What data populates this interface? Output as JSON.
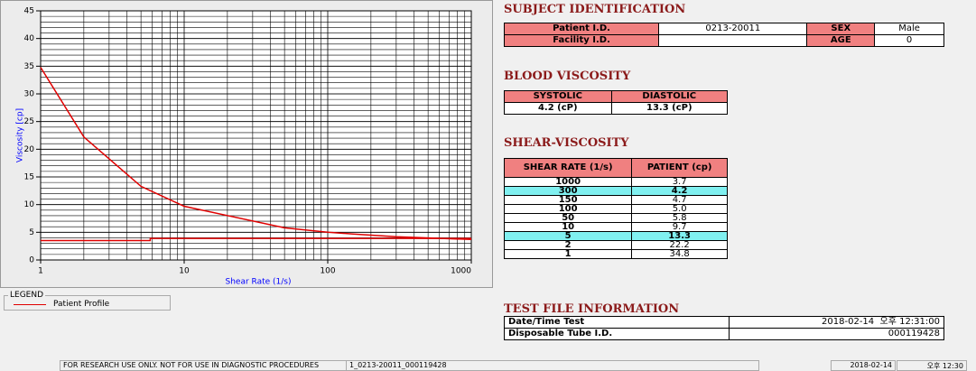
{
  "chart_data": {
    "type": "line",
    "x_label": "Shear Rate (1/s)",
    "y_label": "Viscosity [cp]",
    "xlog": true,
    "xlim": [
      1,
      1000
    ],
    "xticks": [
      1,
      10,
      100,
      1000
    ],
    "ylim": [
      0,
      45
    ],
    "yticks": [
      0,
      5,
      10,
      15,
      20,
      25,
      30,
      35,
      40,
      45
    ],
    "grid": true,
    "minor_grid": true,
    "legend_title": "LEGEND",
    "series": [
      {
        "name": "Patient Profile",
        "color": "#e00000",
        "x": [
          1,
          2,
          5,
          10,
          50,
          100,
          150,
          300,
          1000
        ],
        "values": [
          34.8,
          22.2,
          13.3,
          9.7,
          5.8,
          5.0,
          4.7,
          4.2,
          3.7
        ]
      },
      {
        "color": "#e00000",
        "x": [
          1,
          5.8,
          5.8,
          1000
        ],
        "values": [
          3.5,
          3.5,
          3.9,
          3.9
        ]
      }
    ]
  },
  "subject": {
    "title": "SUBJECT IDENTIFICATION",
    "rows": [
      [
        "Patient I.D.",
        "0213-20011",
        "SEX",
        "Male"
      ],
      [
        "Facility I.D.",
        null,
        "AGE",
        "0"
      ]
    ]
  },
  "blood": {
    "title": "BLOOD VISCOSITY",
    "header": [
      "SYSTOLIC",
      "DIASTOLIC"
    ],
    "row": [
      "4.2 (cP)",
      "13.3 (cP)"
    ]
  },
  "shear": {
    "title": "SHEAR-VISCOSITY",
    "header": [
      "SHEAR RATE (1/s)",
      "PATIENT (cp)"
    ],
    "highlight": [
      1,
      6
    ],
    "rows": [
      [
        "1000",
        "3.7"
      ],
      [
        "300",
        "4.2"
      ],
      [
        "150",
        "4.7"
      ],
      [
        "100",
        "5.0"
      ],
      [
        "50",
        "5.8"
      ],
      [
        "10",
        "9.7"
      ],
      [
        "5",
        "13.3"
      ],
      [
        "2",
        "22.2"
      ],
      [
        "1",
        "34.8"
      ]
    ]
  },
  "test_file": {
    "title": "TEST FILE INFORMATION",
    "rows": [
      [
        "Date/Time Test",
        "2018-02-14  오후 12:31:00"
      ],
      [
        "Disposable Tube I.D.",
        "000119428"
      ]
    ]
  },
  "status_bar": [
    "FOR RESEARCH USE ONLY. NOT FOR USE IN DIAGNOSTIC PROCEDURES",
    "1_0213-20011_000119428",
    "2018-02-14",
    "오후 12:30"
  ]
}
